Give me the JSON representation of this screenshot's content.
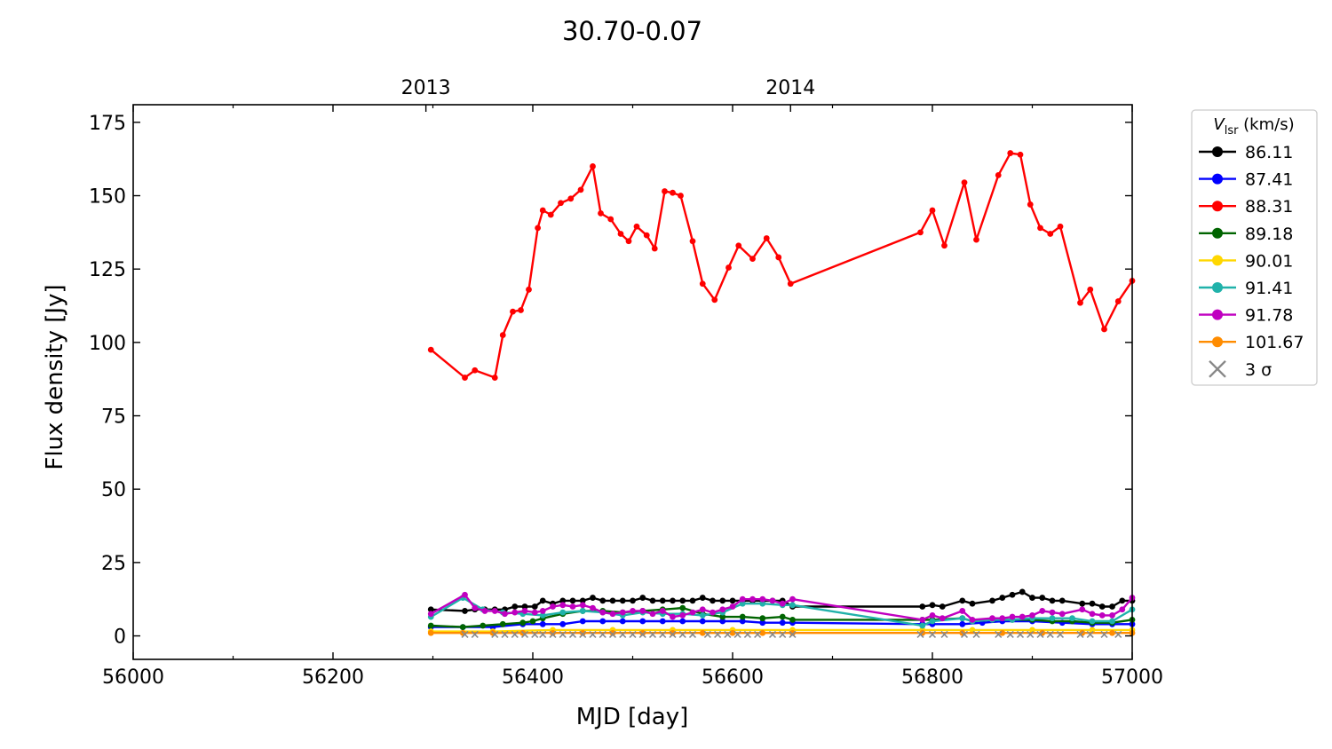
{
  "chart_data": {
    "type": "line",
    "title": "30.70-0.07",
    "xlabel": "MJD [day]",
    "ylabel": "Flux density [Jy]",
    "xlim": [
      56000,
      57000
    ],
    "ylim": [
      -8,
      181
    ],
    "xticks": [
      56000,
      56200,
      56400,
      56600,
      56800,
      57000
    ],
    "yticks": [
      0,
      25,
      50,
      75,
      100,
      125,
      150,
      175
    ],
    "top_axis": {
      "ticks": [
        {
          "label": "2013",
          "x": 56293
        },
        {
          "label": "2014",
          "x": 56658
        }
      ]
    },
    "grid": false,
    "legend": {
      "placement": "outside-right",
      "title_main": "V",
      "title_sub": "lsr",
      "title_units": " (km/s)",
      "sigma_label": "3 σ"
    },
    "series": [
      {
        "name": "86.11",
        "color": "#000000",
        "x": [
          56298,
          56332,
          56342,
          56352,
          56362,
          56372,
          56382,
          56392,
          56402,
          56410,
          56420,
          56430,
          56440,
          56450,
          56460,
          56470,
          56480,
          56490,
          56500,
          56510,
          56520,
          56530,
          56540,
          56550,
          56560,
          56570,
          56580,
          56590,
          56600,
          56610,
          56620,
          56630,
          56640,
          56650,
          56660,
          56790,
          56800,
          56810,
          56830,
          56840,
          56860,
          56870,
          56880,
          56890,
          56900,
          56910,
          56920,
          56930,
          56950,
          56960,
          56970,
          56980,
          56990,
          57000
        ],
        "y": [
          9,
          8.5,
          9,
          9,
          9,
          9,
          10,
          10,
          10,
          12,
          11,
          12,
          12,
          12,
          13,
          12,
          12,
          12,
          12,
          13,
          12,
          12,
          12,
          12,
          12,
          13,
          12,
          12,
          12,
          12,
          12,
          12,
          12,
          12,
          10,
          10,
          10.5,
          10,
          12,
          11,
          12,
          13,
          14,
          15,
          13,
          13,
          12,
          12,
          11,
          11,
          10,
          10,
          12,
          12
        ]
      },
      {
        "name": "87.41",
        "color": "#0000ff",
        "x": [
          56298,
          56330,
          56360,
          56390,
          56410,
          56430,
          56450,
          56470,
          56490,
          56510,
          56530,
          56550,
          56570,
          56590,
          56610,
          56630,
          56650,
          56660,
          56790,
          56800,
          56830,
          56850,
          56870,
          56900,
          56930,
          56960,
          56980,
          57000
        ],
        "y": [
          3,
          3,
          3,
          4,
          4,
          4,
          5,
          5,
          5,
          5,
          5,
          5,
          5,
          5,
          5,
          4.5,
          4.5,
          4.5,
          4,
          4,
          4,
          4.5,
          5,
          5,
          4.5,
          4,
          4,
          4
        ]
      },
      {
        "name": "88.31",
        "color": "#ff0000",
        "x": [
          56298,
          56332,
          56342,
          56362,
          56370,
          56380,
          56388,
          56396,
          56405,
          56410,
          56418,
          56428,
          56438,
          56448,
          56460,
          56468,
          56478,
          56488,
          56496,
          56504,
          56514,
          56522,
          56532,
          56540,
          56548,
          56560,
          56570,
          56582,
          56596,
          56606,
          56620,
          56634,
          56646,
          56658,
          56788,
          56800,
          56812,
          56832,
          56844,
          56866,
          56878,
          56888,
          56898,
          56908,
          56918,
          56928,
          56948,
          56958,
          56972,
          56986,
          57000
        ],
        "y": [
          97.5,
          88,
          90.5,
          88,
          102.5,
          110.5,
          111,
          118,
          139,
          145,
          143.5,
          147.5,
          149,
          152,
          160,
          144,
          142,
          137,
          134.5,
          139.5,
          136.5,
          132,
          151.5,
          151,
          150,
          134.5,
          120,
          114.5,
          125.5,
          133,
          128.5,
          135.5,
          129,
          120,
          137.5,
          145,
          133,
          154.5,
          135,
          157,
          164.5,
          164,
          147,
          139,
          137,
          139.5,
          113.5,
          118,
          104.5,
          114,
          121
        ]
      },
      {
        "name": "89.18",
        "color": "#006400",
        "x": [
          56298,
          56330,
          56350,
          56370,
          56390,
          56400,
          56410,
          56430,
          56450,
          56470,
          56490,
          56510,
          56530,
          56550,
          56570,
          56590,
          56610,
          56630,
          56650,
          56660,
          56790,
          56800,
          56830,
          56840,
          56860,
          56880,
          56900,
          56920,
          56940,
          56960,
          56980,
          57000
        ],
        "y": [
          3.5,
          3,
          3.5,
          4,
          4.5,
          5,
          6,
          7.5,
          8.5,
          8.5,
          8,
          8.5,
          9,
          9.5,
          7.5,
          6.5,
          6.5,
          6,
          6.5,
          5.5,
          5.5,
          5.5,
          6,
          5,
          5.5,
          5.5,
          5.5,
          5,
          5,
          4.5,
          4.5,
          5.5
        ]
      },
      {
        "name": "90.01",
        "color": "#ffd700",
        "x": [
          56298,
          56360,
          56420,
          56480,
          56540,
          56600,
          56660,
          56790,
          56840,
          56900,
          56960,
          57000
        ],
        "y": [
          1.5,
          1.5,
          2,
          2,
          2,
          2,
          2,
          2,
          2,
          2,
          2,
          2
        ]
      },
      {
        "name": "91.41",
        "color": "#20b2aa",
        "x": [
          56298,
          56330,
          56350,
          56370,
          56390,
          56410,
          56430,
          56450,
          56470,
          56490,
          56510,
          56530,
          56550,
          56570,
          56590,
          56610,
          56630,
          56650,
          56660,
          56790,
          56800,
          56830,
          56840,
          56860,
          56880,
          56900,
          56920,
          56940,
          56960,
          56980,
          57000
        ],
        "y": [
          6.5,
          13,
          9,
          8,
          7.5,
          7,
          8,
          8.5,
          8,
          7,
          8,
          7.5,
          7.5,
          7,
          8,
          11,
          11,
          10.5,
          10.5,
          3.5,
          5,
          6,
          5,
          5.5,
          5.5,
          6,
          6,
          6,
          5,
          5,
          9
        ]
      },
      {
        "name": "91.78",
        "color": "#c000c0",
        "x": [
          56298,
          56332,
          56342,
          56352,
          56362,
          56372,
          56382,
          56392,
          56402,
          56410,
          56420,
          56430,
          56440,
          56450,
          56460,
          56470,
          56480,
          56490,
          56500,
          56510,
          56520,
          56530,
          56540,
          56550,
          56560,
          56570,
          56580,
          56590,
          56600,
          56610,
          56620,
          56630,
          56640,
          56650,
          56660,
          56790,
          56800,
          56810,
          56830,
          56840,
          56860,
          56870,
          56880,
          56890,
          56900,
          56910,
          56920,
          56930,
          56950,
          56960,
          56970,
          56980,
          56990,
          57000
        ],
        "y": [
          7.5,
          14,
          9.5,
          8.5,
          8.5,
          7.5,
          8,
          8.5,
          8,
          8.5,
          10,
          10.5,
          10,
          10.5,
          9.5,
          8,
          7.5,
          8,
          8.5,
          8.5,
          7.5,
          8.5,
          6.5,
          7,
          8,
          9,
          8,
          9,
          10,
          12.5,
          12.5,
          12.5,
          12,
          11,
          12.5,
          5.5,
          7,
          6,
          8.5,
          5.5,
          6,
          6,
          6.5,
          6.5,
          7,
          8.5,
          8,
          7.5,
          9,
          7.5,
          7,
          7,
          9,
          13
        ]
      },
      {
        "name": "101.67",
        "color": "#ff8c00",
        "x": [
          56298,
          56330,
          56360,
          56390,
          56420,
          56450,
          56480,
          56510,
          56540,
          56570,
          56600,
          56630,
          56660,
          56790,
          56830,
          56870,
          56910,
          56950,
          56980,
          57000
        ],
        "y": [
          1,
          1,
          1,
          1,
          1,
          1,
          1,
          1,
          1,
          1,
          1,
          1,
          1,
          1,
          1,
          1,
          1,
          1,
          1,
          1
        ]
      }
    ],
    "sigma_markers": {
      "name": "3 σ",
      "color": "#888888",
      "y": 0.5,
      "x": [
        56332,
        56342,
        56362,
        56372,
        56382,
        56392,
        56402,
        56410,
        56420,
        56430,
        56440,
        56450,
        56460,
        56470,
        56480,
        56490,
        56500,
        56510,
        56520,
        56530,
        56540,
        56550,
        56560,
        56575,
        56585,
        56595,
        56605,
        56615,
        56625,
        56640,
        56650,
        56660,
        56788,
        56800,
        56812,
        56832,
        56844,
        56866,
        56878,
        56888,
        56898,
        56908,
        56918,
        56928,
        56948,
        56958,
        56972,
        56986
      ]
    }
  }
}
